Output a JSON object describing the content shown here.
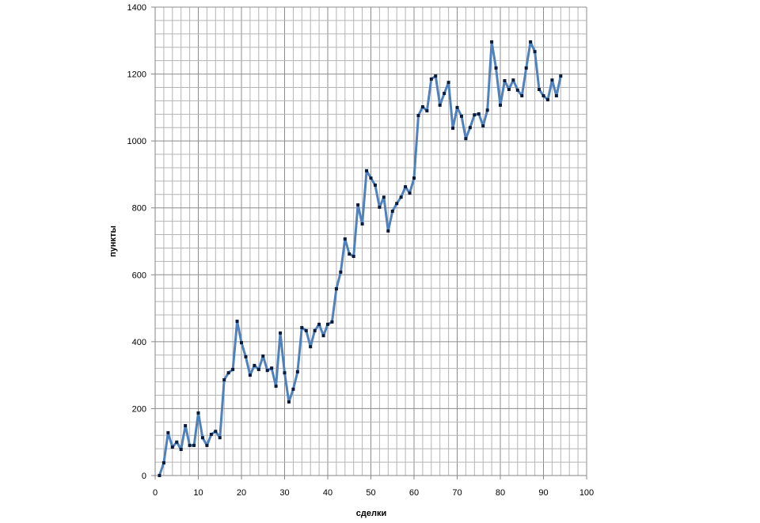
{
  "chart_data": {
    "type": "line",
    "title": "",
    "xlabel": "сделки",
    "ylabel": "пункты",
    "xlim": [
      0,
      100
    ],
    "ylim": [
      0,
      1400
    ],
    "x_ticks": [
      0,
      10,
      20,
      30,
      40,
      50,
      60,
      70,
      80,
      90,
      100
    ],
    "y_ticks": [
      0,
      200,
      400,
      600,
      800,
      1000,
      1200,
      1400
    ],
    "x_minor_step": 2,
    "y_minor_step": 40,
    "grid": true,
    "legend": null,
    "colors": {
      "line": "#4f81bd",
      "marker": "#0a1a3a",
      "grid_minor": "#b4b4b4",
      "grid_major": "#8c8c8c",
      "axis": "#868686"
    },
    "series": [
      {
        "name": "пункты",
        "x": [
          1,
          2,
          3,
          4,
          5,
          6,
          7,
          8,
          9,
          10,
          11,
          12,
          13,
          14,
          15,
          16,
          17,
          18,
          19,
          20,
          21,
          22,
          23,
          24,
          25,
          26,
          27,
          28,
          29,
          30,
          31,
          32,
          33,
          34,
          35,
          36,
          37,
          38,
          39,
          40,
          41,
          42,
          43,
          44,
          45,
          46,
          47,
          48,
          49,
          50,
          51,
          52,
          53,
          54,
          55,
          56,
          57,
          58,
          59,
          60,
          61,
          62,
          63,
          64,
          65,
          66,
          67,
          68,
          69,
          70,
          71,
          72,
          73,
          74,
          75,
          76,
          77,
          78,
          79,
          80,
          81,
          82,
          83,
          84,
          85,
          86,
          87,
          88,
          89,
          90,
          91,
          92,
          93,
          94
        ],
        "values": [
          0,
          38,
          128,
          85,
          100,
          78,
          149,
          90,
          90,
          187,
          113,
          90,
          123,
          132,
          113,
          286,
          307,
          317,
          461,
          397,
          355,
          300,
          329,
          317,
          357,
          314,
          321,
          267,
          426,
          307,
          220,
          258,
          310,
          442,
          433,
          385,
          433,
          452,
          418,
          452,
          459,
          558,
          608,
          707,
          662,
          655,
          809,
          752,
          911,
          889,
          868,
          802,
          832,
          731,
          790,
          813,
          832,
          863,
          844,
          889,
          1076,
          1102,
          1090,
          1185,
          1194,
          1107,
          1142,
          1175,
          1038,
          1100,
          1074,
          1007,
          1040,
          1078,
          1081,
          1045,
          1092,
          1296,
          1218,
          1107,
          1180,
          1154,
          1182,
          1152,
          1135,
          1218,
          1296,
          1267,
          1154,
          1135,
          1123,
          1182,
          1135,
          1194
        ]
      }
    ]
  }
}
